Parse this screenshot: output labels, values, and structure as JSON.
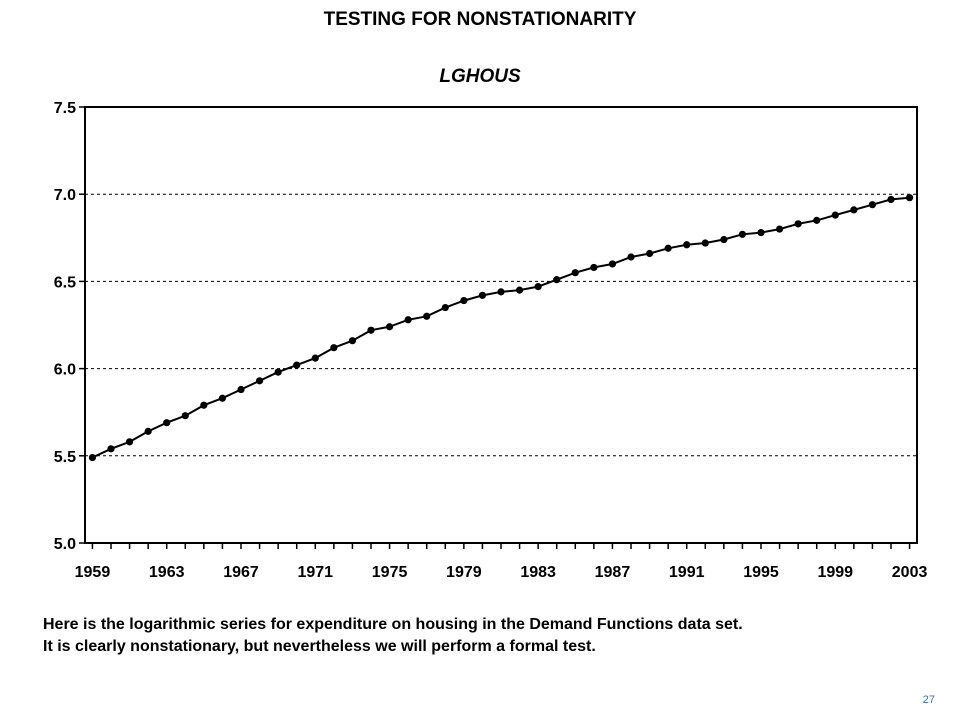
{
  "slide": {
    "title": "TESTING FOR NONSTATIONARITY",
    "caption_line1": "Here is the logarithmic series for expenditure on housing in the Demand Functions data set.",
    "caption_line2": "It is clearly nonstationary, but nevertheless we will perform a formal test.",
    "page_number": "27"
  },
  "chart_data": {
    "type": "line",
    "title": "LGHOUS",
    "xlabel": "",
    "ylabel": "",
    "x": [
      1959,
      1960,
      1961,
      1962,
      1963,
      1964,
      1965,
      1966,
      1967,
      1968,
      1969,
      1970,
      1971,
      1972,
      1973,
      1974,
      1975,
      1976,
      1977,
      1978,
      1979,
      1980,
      1981,
      1982,
      1983,
      1984,
      1985,
      1986,
      1987,
      1988,
      1989,
      1990,
      1991,
      1992,
      1993,
      1994,
      1995,
      1996,
      1997,
      1998,
      1999,
      2000,
      2001,
      2002,
      2003
    ],
    "series": [
      {
        "values": [
          5.49,
          5.54,
          5.58,
          5.64,
          5.69,
          5.73,
          5.79,
          5.83,
          5.88,
          5.93,
          5.98,
          6.02,
          6.06,
          6.12,
          6.16,
          6.22,
          6.24,
          6.28,
          6.3,
          6.35,
          6.39,
          6.42,
          6.44,
          6.45,
          6.47,
          6.51,
          6.55,
          6.58,
          6.6,
          6.64,
          6.66,
          6.69,
          6.71,
          6.72,
          6.74,
          6.77,
          6.78,
          6.8,
          6.83,
          6.85,
          6.88,
          6.91,
          6.94,
          6.97,
          6.98
        ],
        "color": "#000000",
        "marker": "circle"
      }
    ],
    "xlim": [
      1958.6,
      2003.4
    ],
    "ylim": [
      5.0,
      7.5
    ],
    "yticks": [
      "5.0",
      "5.5",
      "6.0",
      "6.5",
      "7.0",
      "7.5"
    ],
    "xtick_labels": [
      "1959",
      "1963",
      "1967",
      "1971",
      "1975",
      "1979",
      "1983",
      "1987",
      "1991",
      "1995",
      "1999",
      "2003"
    ],
    "grid": "horizontal dashed",
    "legend": "none"
  }
}
